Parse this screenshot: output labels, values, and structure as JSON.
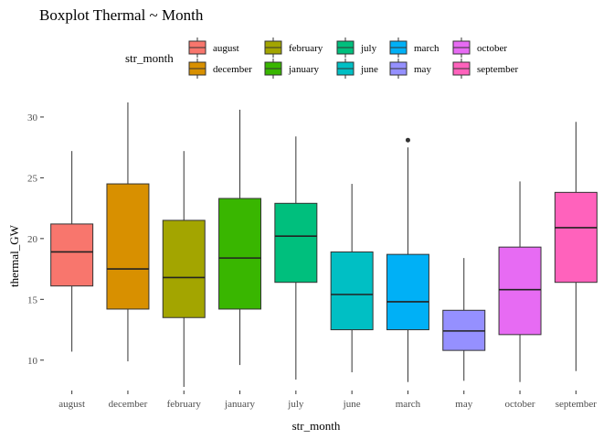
{
  "chart_data": {
    "type": "boxplot",
    "title": "Boxplot Thermal ~ Month",
    "xlabel": "str_month",
    "ylabel": "thermal_GW",
    "ylim": [
      7.5,
      31.5
    ],
    "yticks": [
      10,
      15,
      20,
      25,
      30
    ],
    "grid": false,
    "legend": {
      "title": "str_month",
      "placement": "top",
      "entries": [
        "august",
        "december",
        "february",
        "january",
        "july",
        "june",
        "march",
        "may",
        "october",
        "september"
      ]
    },
    "categories": [
      "august",
      "december",
      "february",
      "january",
      "july",
      "june",
      "march",
      "may",
      "october",
      "september"
    ],
    "colors": {
      "august": "#F8766D",
      "december": "#D89000",
      "february": "#A3A500",
      "january": "#39B600",
      "july": "#00BF7D",
      "june": "#00BFC4",
      "march": "#00B0F6",
      "may": "#9590FF",
      "october": "#E76BF3",
      "september": "#FF62BC"
    },
    "boxes": [
      {
        "category": "august",
        "min": 10.7,
        "q1": 16.1,
        "median": 18.9,
        "q3": 21.2,
        "max": 27.2,
        "outliers": []
      },
      {
        "category": "december",
        "min": 9.9,
        "q1": 14.2,
        "median": 17.5,
        "q3": 24.5,
        "max": 31.2,
        "outliers": []
      },
      {
        "category": "february",
        "min": 7.8,
        "q1": 13.5,
        "median": 16.8,
        "q3": 21.5,
        "max": 27.2,
        "outliers": []
      },
      {
        "category": "january",
        "min": 9.6,
        "q1": 14.2,
        "median": 18.4,
        "q3": 23.3,
        "max": 30.6,
        "outliers": []
      },
      {
        "category": "july",
        "min": 8.4,
        "q1": 16.4,
        "median": 20.2,
        "q3": 22.9,
        "max": 28.4,
        "outliers": []
      },
      {
        "category": "june",
        "min": 9.0,
        "q1": 12.5,
        "median": 15.4,
        "q3": 18.9,
        "max": 24.5,
        "outliers": []
      },
      {
        "category": "march",
        "min": 8.2,
        "q1": 12.5,
        "median": 14.8,
        "q3": 18.7,
        "max": 27.5,
        "outliers": [
          28.1
        ]
      },
      {
        "category": "may",
        "min": 8.3,
        "q1": 10.8,
        "median": 12.4,
        "q3": 14.1,
        "max": 18.4,
        "outliers": []
      },
      {
        "category": "october",
        "min": 8.2,
        "q1": 12.1,
        "median": 15.8,
        "q3": 19.3,
        "max": 24.7,
        "outliers": []
      },
      {
        "category": "september",
        "min": 9.1,
        "q1": 16.4,
        "median": 20.9,
        "q3": 23.8,
        "max": 29.6,
        "outliers": []
      }
    ]
  }
}
